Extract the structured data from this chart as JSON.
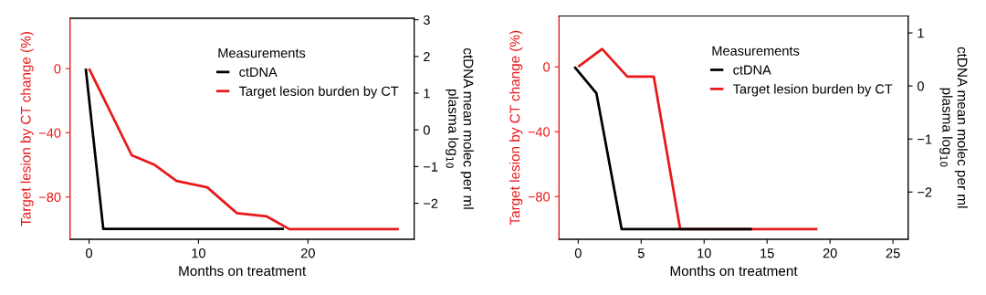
{
  "chart_data": [
    {
      "type": "line",
      "xlabel": "Months on treatment",
      "ylabel": "Target lesion by CT change (%)",
      "y2label": "ctDNA mean molec per ml\nplasma log$_{10}$",
      "legend_title": "Measurements",
      "legend": "top right",
      "grid": false,
      "xlim": [
        -1.74,
        29.7
      ],
      "xticks": [
        0,
        10,
        20
      ],
      "ylim": [
        -106.3,
        31.3
      ],
      "yticks": [
        0,
        -40,
        -80
      ],
      "y2lim": [
        -2.98,
        3.04
      ],
      "y2ticks": [
        3,
        2,
        1,
        0,
        -1,
        -2
      ],
      "series": [
        {
          "name": "ctDNA",
          "color": "#000000",
          "axis": "y2",
          "x": [
            -0.3,
            1.3,
            17.8
          ],
          "values": [
            1.67,
            -2.7,
            -2.7
          ]
        },
        {
          "name": "Target lesion burden by CT",
          "color": "#e8191b",
          "x": [
            0,
            3.9,
            6.0,
            8.0,
            10.8,
            13.5,
            16.2,
            18.3,
            28.3
          ],
          "values": [
            0,
            -54,
            -60,
            -70,
            -74,
            -90,
            -92,
            -100,
            -100
          ]
        }
      ]
    },
    {
      "type": "line",
      "xlabel": "Months on treatment",
      "ylabel": "Target lesion by CT change (%)",
      "y2label": "ctDNA mean molec per ml\nplasma log$_{10}$",
      "legend_title": "Measurements",
      "legend": "top right",
      "grid": false,
      "xlim": [
        -1.52,
        26.2
      ],
      "xticks": [
        0,
        5,
        10,
        15,
        20,
        25
      ],
      "ylim": [
        -106.3,
        31.4
      ],
      "yticks": [
        0,
        -40,
        -80
      ],
      "y2lim": [
        -2.89,
        1.32
      ],
      "y2ticks": [
        1,
        0,
        -1,
        -2
      ],
      "series": [
        {
          "name": "ctDNA",
          "color": "#000000",
          "axis": "y2",
          "x": [
            -0.3,
            1.45,
            3.45,
            13.8
          ],
          "values": [
            0.36,
            -0.14,
            -2.7,
            -2.7
          ]
        },
        {
          "name": "Target lesion burden by CT",
          "color": "#e8191b",
          "x": [
            0,
            1.9,
            3.9,
            6.0,
            8.1,
            19.0
          ],
          "values": [
            0,
            11,
            -6,
            -6,
            -100,
            -100
          ]
        }
      ]
    }
  ]
}
